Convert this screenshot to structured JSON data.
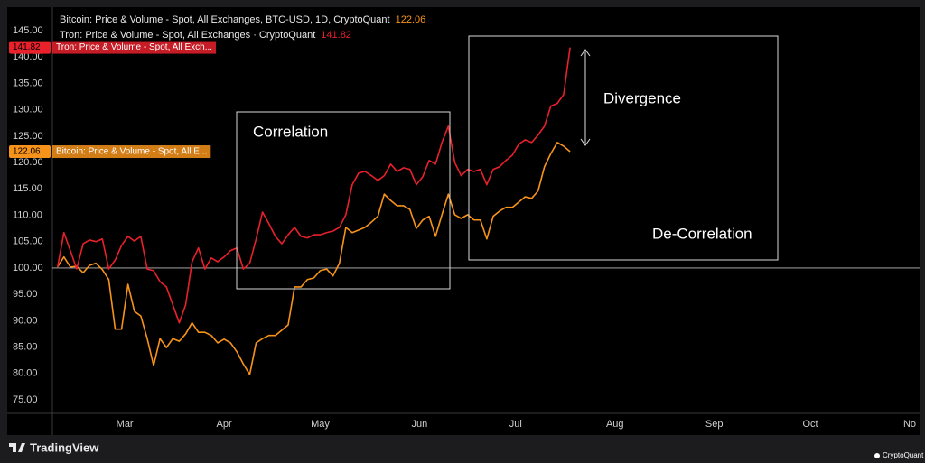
{
  "chart_data": {
    "type": "line",
    "x": [
      40,
      42,
      44,
      46,
      48,
      50,
      52,
      54,
      56,
      58,
      60,
      62,
      64,
      66,
      68,
      70,
      72,
      74,
      76,
      78,
      80,
      82,
      84,
      86,
      88,
      90,
      92,
      94,
      96,
      98,
      100,
      102,
      104,
      106,
      108,
      110,
      112,
      114,
      116,
      118,
      120,
      122,
      124,
      126,
      128,
      130,
      132,
      134,
      136,
      138,
      140,
      142,
      144,
      146,
      148,
      150,
      152,
      154,
      156,
      158,
      160,
      162,
      164,
      166,
      168,
      170,
      172,
      174,
      176,
      178,
      180,
      182,
      184,
      186,
      188,
      190,
      192,
      194,
      196,
      198,
      200
    ],
    "series": [
      {
        "name": "Bitcoin: Price & Volume - Spot, All Exchanges, BTC-USD, 1D, CryptoQuant",
        "axis_tag": "Bitcoin: Price & Volume - Spot, All E...",
        "color": "#f7931a",
        "values": [
          100.2,
          102.1,
          100.2,
          100.3,
          99.1,
          100.5,
          100.9,
          99.7,
          97.8,
          88.4,
          88.4,
          96.9,
          91.8,
          90.9,
          86.6,
          81.5,
          86.6,
          84.9,
          86.6,
          86.1,
          87.5,
          89.6,
          87.8,
          87.8,
          87.2,
          85.8,
          86.5,
          85.8,
          84.1,
          81.8,
          79.8,
          85.8,
          86.6,
          87.2,
          87.2,
          88.2,
          89.2,
          96.4,
          96.4,
          97.8,
          98.1,
          99.5,
          99.8,
          98.5,
          100.9,
          107.7,
          106.7,
          107.2,
          107.7,
          108.7,
          109.8,
          114.0,
          112.8,
          111.8,
          111.8,
          111.1,
          107.5,
          109.1,
          109.8,
          106.0,
          110.1,
          114.0,
          110.1,
          109.4,
          110.1,
          109.1,
          109.1,
          105.5,
          109.8,
          110.8,
          111.5,
          111.5,
          112.5,
          113.5,
          113.2,
          114.6,
          119.2,
          121.7,
          123.8,
          123.1,
          122.06
        ]
      },
      {
        "name": "Tron: Price & Volume - Spot, All Exchanges · CryptoQuant",
        "axis_tag": "Tron: Price & Volume - Spot, All Exch...",
        "color": "#e8212b",
        "values": [
          100.1,
          106.7,
          103.3,
          99.8,
          104.6,
          105.3,
          105.0,
          105.5,
          99.8,
          101.5,
          104.3,
          106.0,
          105.1,
          106.0,
          99.8,
          99.5,
          97.4,
          96.4,
          93.0,
          89.6,
          93.0,
          101.2,
          103.8,
          99.8,
          101.9,
          101.2,
          102.1,
          103.3,
          103.8,
          99.8,
          100.9,
          105.5,
          110.6,
          108.4,
          106.0,
          104.6,
          106.3,
          107.7,
          106.0,
          105.7,
          106.3,
          106.3,
          106.7,
          107.0,
          107.7,
          110.1,
          115.8,
          118.0,
          118.3,
          117.5,
          116.6,
          117.5,
          119.7,
          118.3,
          119.0,
          118.7,
          115.8,
          117.3,
          120.4,
          119.7,
          123.8,
          126.9,
          120.0,
          117.5,
          118.7,
          118.3,
          118.7,
          115.8,
          118.7,
          119.2,
          120.4,
          121.4,
          123.5,
          124.3,
          123.8,
          125.2,
          126.9,
          130.7,
          131.2,
          132.9,
          141.82
        ]
      }
    ],
    "xlim": [
      38.4,
      309.1
    ],
    "xticks": [
      {
        "value": 61,
        "label": "Mar"
      },
      {
        "value": 92,
        "label": "Apr"
      },
      {
        "value": 122,
        "label": "May"
      },
      {
        "value": 153,
        "label": "Jun"
      },
      {
        "value": 183,
        "label": "Jul"
      },
      {
        "value": 214,
        "label": "Aug"
      },
      {
        "value": 245,
        "label": "Sep"
      },
      {
        "value": 275,
        "label": "Oct"
      },
      {
        "value": 306,
        "label": "No"
      }
    ],
    "ylim": [
      72.43,
      149.45
    ],
    "yticks": [
      {
        "value": 75,
        "label": "75.00"
      },
      {
        "value": 80,
        "label": "80.00"
      },
      {
        "value": 85,
        "label": "85.00"
      },
      {
        "value": 90,
        "label": "90.00"
      },
      {
        "value": 95,
        "label": "95.00"
      },
      {
        "value": 100,
        "label": "100.00"
      },
      {
        "value": 105,
        "label": "105.00"
      },
      {
        "value": 110,
        "label": "110.00"
      },
      {
        "value": 115,
        "label": "115.00"
      },
      {
        "value": 120,
        "label": "120.00"
      },
      {
        "value": 125,
        "label": "125.00"
      },
      {
        "value": 130,
        "label": "130.00"
      },
      {
        "value": 135,
        "label": "135.00"
      },
      {
        "value": 140,
        "label": "140.00"
      },
      {
        "value": 145,
        "label": "145.00"
      }
    ],
    "reference_line": 100,
    "grid": false,
    "annotations": [
      "Correlation",
      "Divergence",
      "De-Correlation"
    ],
    "source_left": "TradingView",
    "source_right": "CryptoQuant"
  }
}
